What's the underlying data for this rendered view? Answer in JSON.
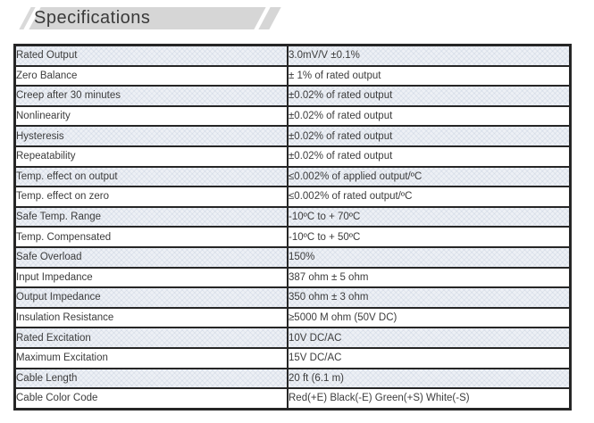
{
  "page": {
    "title": "Specifications"
  },
  "colors": {
    "banner_fill": "#d6d6d6",
    "table_border": "#262626",
    "shaded_row_fill": "#edf0f5",
    "text": "#3c3c3c"
  },
  "table": {
    "rows": [
      {
        "label": "Rated Output",
        "value": "3.0mV/V ±0.1%"
      },
      {
        "label": "Zero Balance",
        "value": "± 1% of rated output"
      },
      {
        "label": "Creep after 30 minutes",
        "value": "±0.02% of rated output"
      },
      {
        "label": "Nonlinearity",
        "value": "±0.02% of rated output"
      },
      {
        "label": "Hysteresis",
        "value": "±0.02% of rated output"
      },
      {
        "label": "Repeatability",
        "value": "±0.02% of rated output"
      },
      {
        "label": "Temp. effect on output",
        "value": "≤0.002% of applied output/ºC"
      },
      {
        "label": "Temp. effect on zero",
        "value": "≤0.002% of rated output/ºC"
      },
      {
        "label": "Safe Temp. Range",
        "value": "-10ºC to + 70ºC"
      },
      {
        "label": "Temp. Compensated",
        "value": "-10ºC to + 50ºC"
      },
      {
        "label": "Safe Overload",
        "value": "150%"
      },
      {
        "label": "Input Impedance",
        "value": "387 ohm ± 5 ohm"
      },
      {
        "label": "Output Impedance",
        "value": "350 ohm ± 3 ohm"
      },
      {
        "label": "Insulation Resistance",
        "value": "≥5000 M ohm  (50V DC)"
      },
      {
        "label": "Rated Excitation",
        "value": "10V DC/AC"
      },
      {
        "label": "Maximum Excitation",
        "value": "15V DC/AC"
      },
      {
        "label": "Cable Length",
        "value": "20 ft (6.1 m)"
      },
      {
        "label": "Cable Color Code",
        "value": "Red(+E) Black(-E) Green(+S) White(-S)"
      }
    ]
  }
}
